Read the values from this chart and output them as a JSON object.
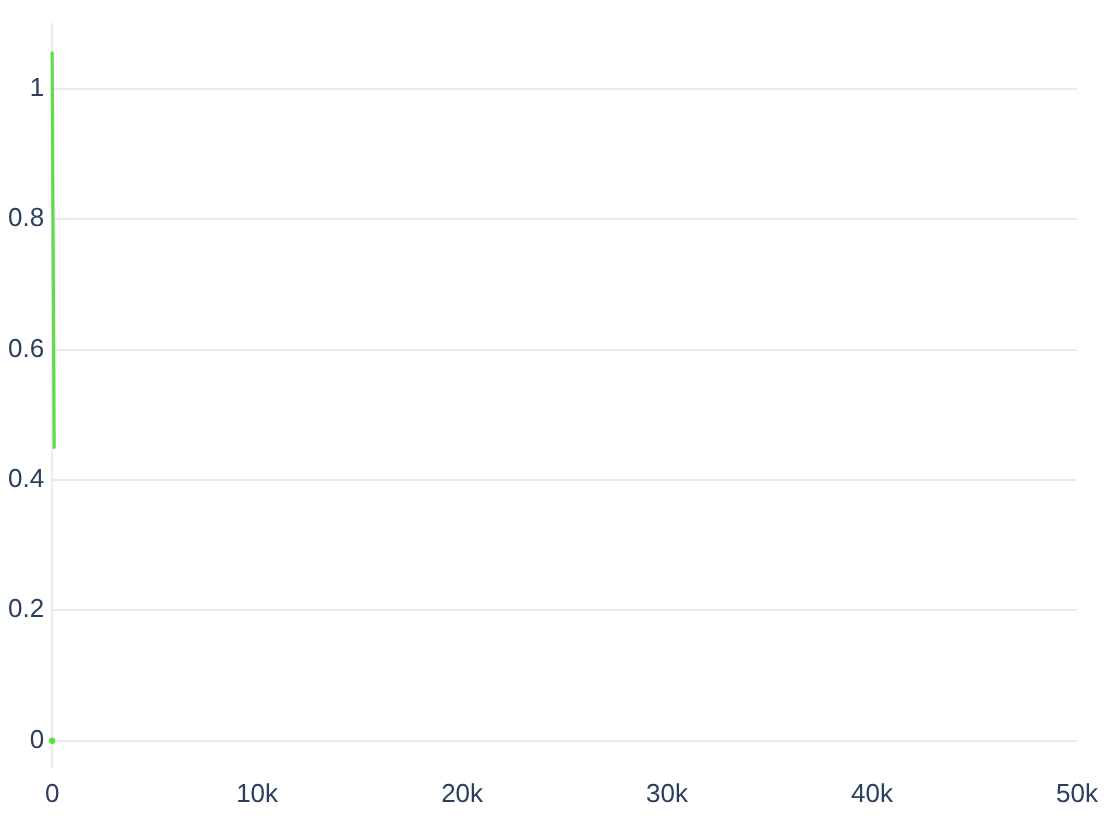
{
  "chart_data": {
    "type": "line",
    "x": [
      0,
      100
    ],
    "series": [
      {
        "color": "#5fdc4a",
        "marker": "none",
        "values": [
          1.055,
          0.45
        ]
      },
      {
        "type": "scatter",
        "marker": "circle",
        "color": "#5fdc4a",
        "x": [
          0
        ],
        "values": [
          0
        ]
      }
    ],
    "xlim": [
      0,
      50000
    ],
    "ylim": [
      -0.04,
      1.1
    ],
    "xticks": [
      0,
      {
        "value": 10000,
        "label": "10k"
      },
      {
        "value": 20000,
        "label": "20k"
      },
      {
        "value": 30000,
        "label": "30k"
      },
      {
        "value": 40000,
        "label": "40k"
      },
      {
        "value": 50000,
        "label": "50k"
      }
    ],
    "yticks": [
      0,
      0.2,
      0.4,
      0.6,
      0.8,
      1
    ],
    "grid": "y"
  }
}
